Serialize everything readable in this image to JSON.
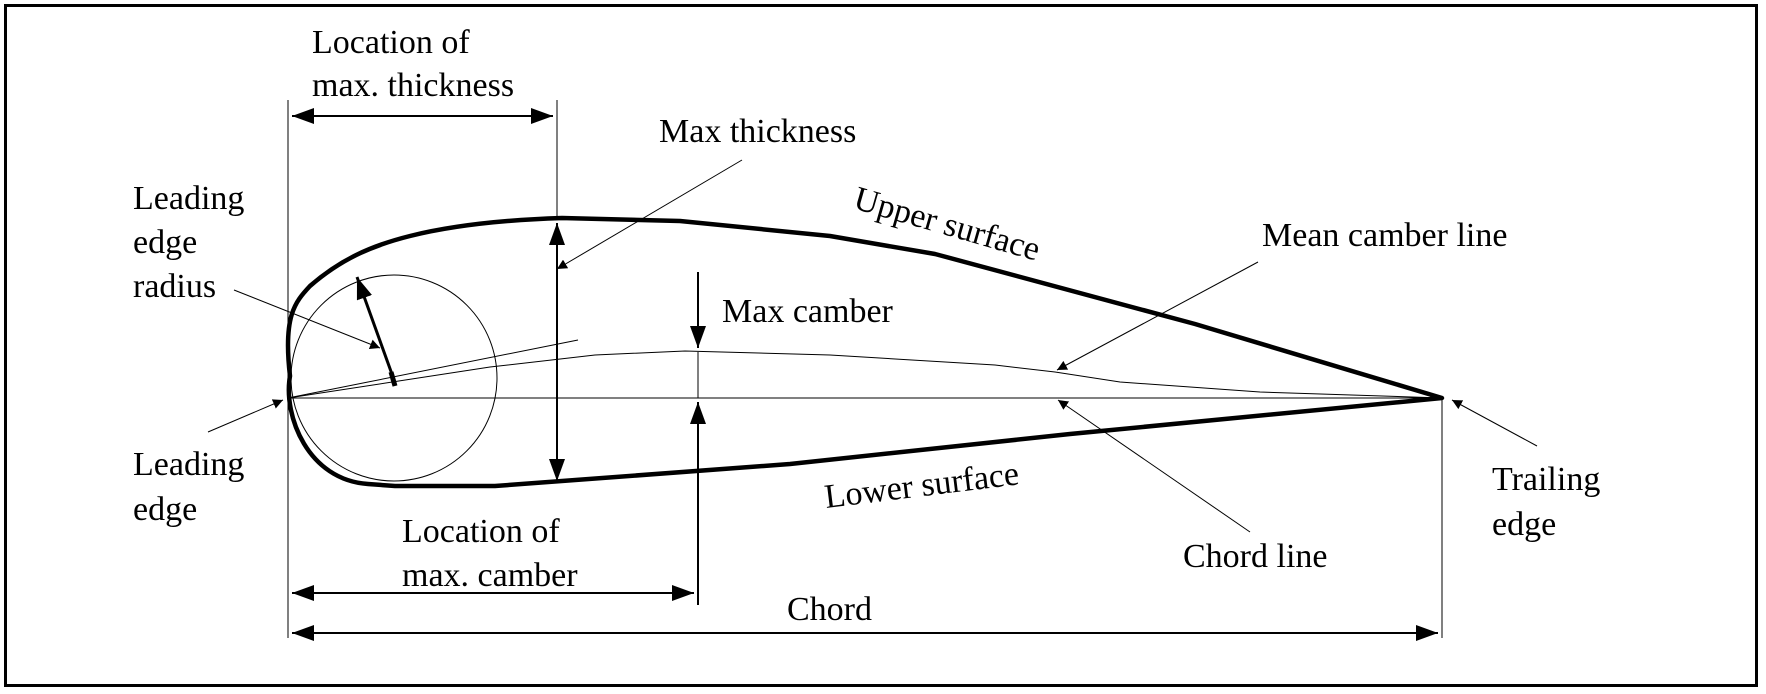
{
  "labels": {
    "loc_max_thickness_1": "Location of",
    "loc_max_thickness_2": "max. thickness",
    "max_thickness": "Max thickness",
    "le_radius_1": "Leading",
    "le_radius_2": "edge",
    "le_radius_3": "radius",
    "upper_surface": "Upper surface",
    "mean_camber_line": "Mean camber line",
    "max_camber": "Max camber",
    "leading_edge_1": "Leading",
    "leading_edge_2": "edge",
    "lower_surface": "Lower surface",
    "trailing_edge_1": "Trailing",
    "trailing_edge_2": "edge",
    "loc_max_camber_1": "Location of",
    "loc_max_camber_2": "max. camber",
    "chord_line": "Chord line",
    "chord": "Chord"
  },
  "colors": {
    "line": "#000000",
    "background": "#ffffff"
  }
}
